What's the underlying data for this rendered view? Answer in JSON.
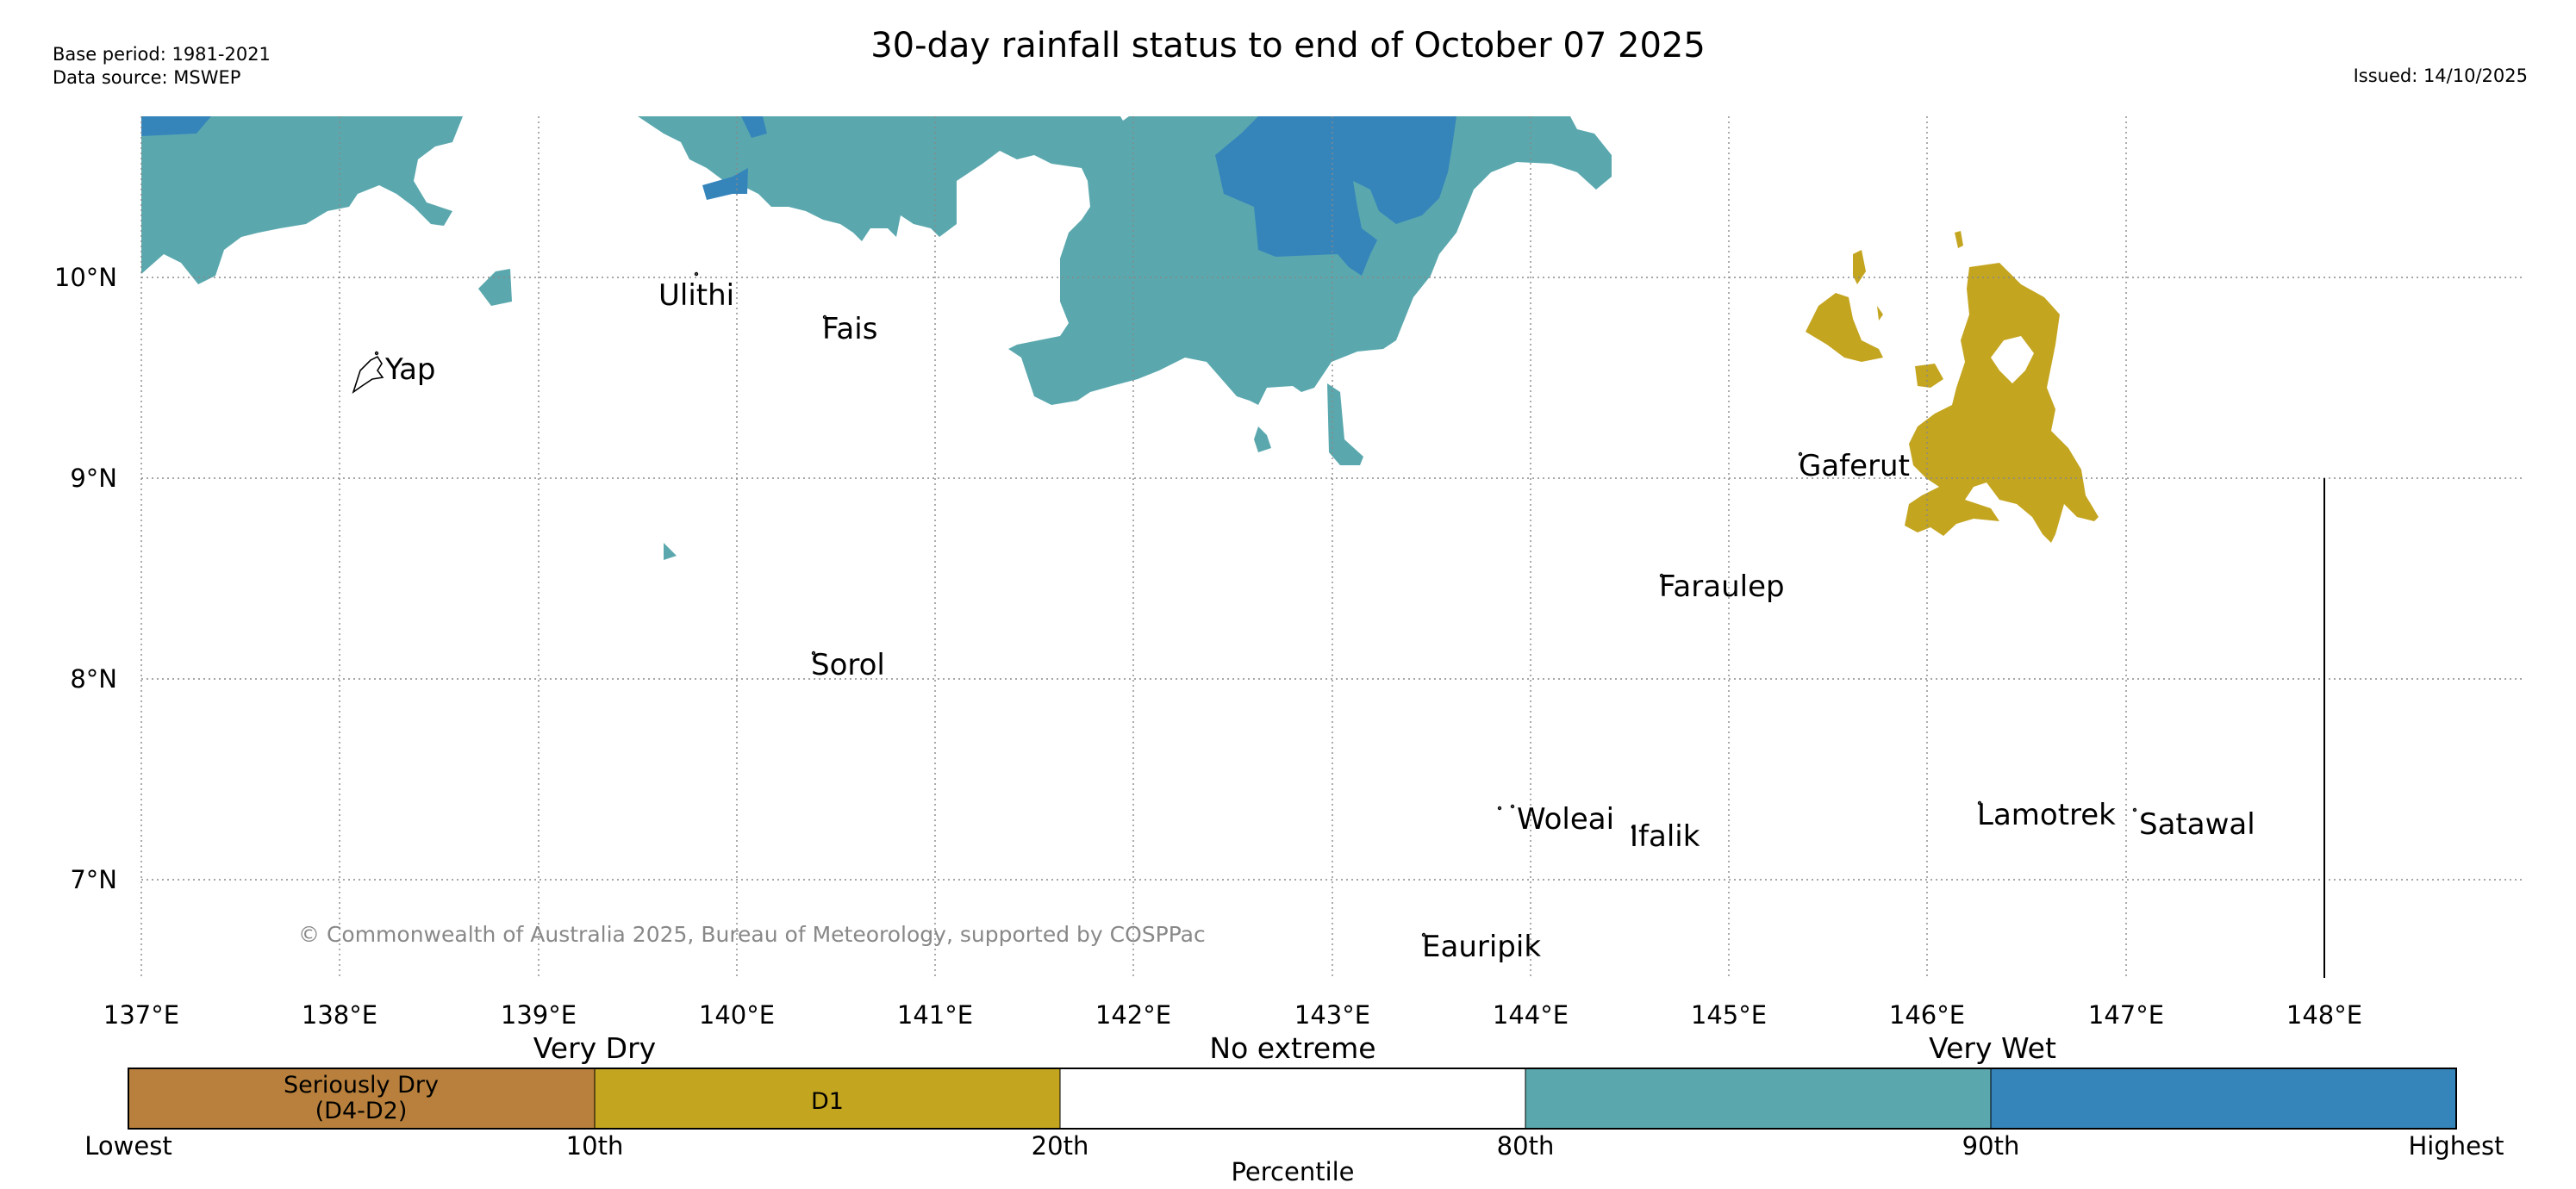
{
  "header": {
    "title": "30-day rainfall status to end of October 07 2025",
    "base_period": "Base period: 1981-2021",
    "data_source": "Data source: MSWEP",
    "issued": "Issued: 14/10/2025"
  },
  "map": {
    "lat_ticks": [
      "10°N",
      "9°N",
      "8°N",
      "7°N"
    ],
    "lon_ticks": [
      "137°E",
      "138°E",
      "139°E",
      "140°E",
      "141°E",
      "142°E",
      "143°E",
      "144°E",
      "145°E",
      "146°E",
      "147°E",
      "148°E"
    ],
    "places": [
      "Ulithi",
      "Fais",
      "Yap",
      "Gaferut",
      "Faraulep",
      "Sorol",
      "Woleai",
      "Ifalik",
      "Lamotrek",
      "Satawal",
      "Eauripik"
    ],
    "copyright": "© Commonwealth of Australia 2025, Bureau of Meteorology, supported by COSPPac"
  },
  "legend": {
    "group_labels": [
      "Very Dry",
      "No extreme",
      "Very Wet"
    ],
    "segments": [
      {
        "line1": "Seriously Dry",
        "line2": "(D4-D2)",
        "color": "#b8803c"
      },
      {
        "line1": "D1",
        "line2": "",
        "color": "#c4a520"
      },
      {
        "line1": "",
        "line2": "",
        "color": "#ffffff"
      },
      {
        "line1": "",
        "line2": "",
        "color": "#5aa8ae"
      },
      {
        "line1": "",
        "line2": "",
        "color": "#3585bb"
      }
    ],
    "percentile_labels": [
      "Lowest",
      "10th",
      "20th",
      "80th",
      "90th",
      "Highest"
    ],
    "axis_label": "Percentile"
  },
  "colors": {
    "very_wet_90": "#5aa8ae",
    "very_wet_highest": "#3585bb",
    "d1": "#c4a520",
    "seriously_dry": "#b8803c"
  }
}
